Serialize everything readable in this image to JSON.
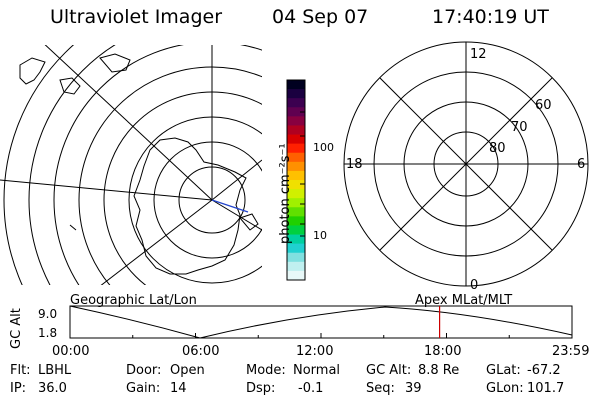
{
  "header": {
    "instrument": "Ultraviolet Imager",
    "date": "04 Sep 07",
    "time": "17:40:19 UT"
  },
  "left_panel": {
    "caption": "Geographic Lat/Lon"
  },
  "right_panel": {
    "caption": "Apex MLat/MLT",
    "mlt_labels": {
      "top": "12",
      "right": "6",
      "bottom": "0",
      "left": "18"
    },
    "lat_labels": [
      "60",
      "70",
      "80"
    ]
  },
  "colorbar": {
    "unit_label": "photon cm⁻²s⁻¹",
    "ticks": [
      "100",
      "10"
    ],
    "colors": [
      "#000020",
      "#1a0040",
      "#3c0050",
      "#600050",
      "#880040",
      "#b00020",
      "#d80000",
      "#ff2000",
      "#ff6000",
      "#ff9000",
      "#ffc000",
      "#f0e000",
      "#d0f000",
      "#a0f000",
      "#60e000",
      "#20d000",
      "#00d040",
      "#00d0a0",
      "#20d0d0",
      "#80e0e0",
      "#c0f0f0",
      "#e8f8f8"
    ]
  },
  "altitude_plot": {
    "axis_label": "GC Alt",
    "y_ticks": [
      "9.0",
      "1.8"
    ],
    "x_ticks": [
      "00:00",
      "06:00",
      "12:00",
      "18:00",
      "23:59"
    ],
    "current_marker_hour": 17.67,
    "accent_color": "#cc0000"
  },
  "info": {
    "row1": [
      {
        "label": "Flt:",
        "value": "LBHL"
      },
      {
        "label": "Door:",
        "value": "Open"
      },
      {
        "label": "Mode:",
        "value": "Normal"
      },
      {
        "label": "GC Alt:",
        "value": "8.8 Re"
      },
      {
        "label": "GLat:",
        "value": "-67.2"
      }
    ],
    "row2": [
      {
        "label": "IP:",
        "value": "36.0"
      },
      {
        "label": "Gain:",
        "value": "14"
      },
      {
        "label": "Dsp:",
        "value": "-0.1"
      },
      {
        "label": "Seq:",
        "value": "39"
      },
      {
        "label": "GLon:",
        "value": "101.7"
      }
    ]
  }
}
